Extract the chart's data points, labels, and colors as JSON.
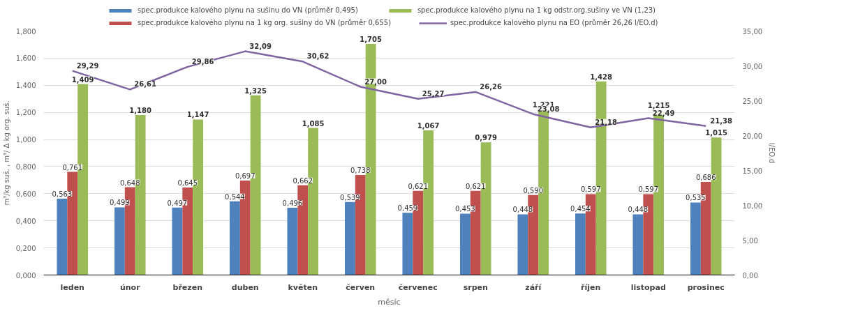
{
  "chart_data": {
    "type": "bar",
    "xlabel": "měsíc",
    "ylabel": "m³/kg suš. , m³/ Δ kg org. suš.",
    "y2label": "l/EO.d",
    "categories": [
      "leden",
      "únor",
      "březen",
      "duben",
      "květen",
      "červen",
      "červenec",
      "srpen",
      "září",
      "říjen",
      "listopad",
      "prosinec"
    ],
    "series": [
      {
        "name": "spec.produkce kalového plynu na sušinu do VN (průměr 0,495)",
        "color": "#4f81bd",
        "values": [
          0.563,
          0.499,
          0.497,
          0.544,
          0.496,
          0.539,
          0.459,
          0.453,
          0.448,
          0.454,
          0.448,
          0.535
        ],
        "value_labels": [
          "0,563",
          "0,499",
          "0,497",
          "0,544",
          "0,496",
          "0,539",
          "0,459",
          "0,453",
          "0,448",
          "0,454",
          "0,448",
          "0,535"
        ]
      },
      {
        "name": "spec.produkce kalového plynu na 1 kg org. sušiny do VN (průměr 0,655)",
        "color": "#c0504d",
        "values": [
          0.761,
          0.648,
          0.645,
          0.697,
          0.662,
          0.738,
          0.621,
          0.621,
          0.59,
          0.597,
          0.597,
          0.686
        ],
        "value_labels": [
          "0,761",
          "0,648",
          "0,645",
          "0,697",
          "0,662",
          "0,738",
          "0,621",
          "0,621",
          "0,590",
          "0,597",
          "0,597",
          "0,686"
        ]
      },
      {
        "name": "spec.produkce kalového plynu na 1 kg odstr.org.sušiny ve VN (1,23)",
        "color": "#9bbb59",
        "values": [
          1.409,
          1.18,
          1.147,
          1.325,
          1.085,
          1.705,
          1.067,
          0.979,
          1.221,
          1.428,
          1.215,
          1.015
        ],
        "value_labels": [
          "1,409",
          "1,180",
          "1,147",
          "1,325",
          "1,085",
          "1,705",
          "1,067",
          "0,979",
          "1,221",
          "1,428",
          "1,215",
          "1,015"
        ]
      },
      {
        "name": "spec.produkce kalového plynu na EO (průměr 26,26 l/EO.d)",
        "color": "#8064a2",
        "type": "line",
        "axis": "y2",
        "values": [
          29.29,
          26.61,
          29.86,
          32.09,
          30.62,
          27.0,
          25.27,
          26.26,
          23.08,
          21.18,
          22.49,
          21.38
        ],
        "value_labels": [
          "29,29",
          "26,61",
          "29,86",
          "32,09",
          "30,62",
          "27,00",
          "25,27",
          "26,26",
          "23,08",
          "21,18",
          "22,49",
          "21,38"
        ]
      }
    ],
    "ylim": [
      0,
      1.8
    ],
    "yticks": [
      {
        "value": 0,
        "label": "0,000"
      },
      {
        "value": 0.2,
        "label": "0,200"
      },
      {
        "value": 0.4,
        "label": "0,400"
      },
      {
        "value": 0.6,
        "label": "0,600"
      },
      {
        "value": 0.8,
        "label": "0,800"
      },
      {
        "value": 1.0,
        "label": "1,000"
      },
      {
        "value": 1.2,
        "label": "1,200"
      },
      {
        "value": 1.4,
        "label": "1,400"
      },
      {
        "value": 1.6,
        "label": "1,600"
      },
      {
        "value": 1.8,
        "label": "1,800"
      }
    ],
    "y2lim": [
      0,
      35
    ],
    "y2ticks": [
      {
        "value": 0,
        "label": "0,00"
      },
      {
        "value": 5,
        "label": "5,00"
      },
      {
        "value": 10,
        "label": "10,00"
      },
      {
        "value": 15,
        "label": "15,00"
      },
      {
        "value": 20,
        "label": "20,00"
      },
      {
        "value": 25,
        "label": "25,00"
      },
      {
        "value": 30,
        "label": "30,00"
      },
      {
        "value": 35,
        "label": "35,00"
      }
    ],
    "grid": "y",
    "legend": "top",
    "marker": "none",
    "line_style": "solid"
  }
}
